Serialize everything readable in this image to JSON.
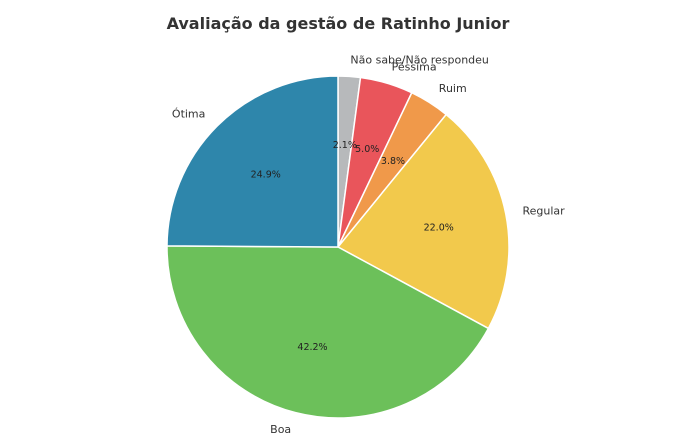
{
  "chart_data": {
    "type": "pie",
    "title": "Avaliação da gestão de Ratinho Junior",
    "start_angle_deg": 90,
    "direction": "clockwise",
    "slices": [
      {
        "label": "Não sabe/Não respondeu",
        "value": 2.1,
        "pct_label": "2.1%",
        "color": "#b7b9bb"
      },
      {
        "label": "Péssima",
        "value": 5.0,
        "pct_label": "5.0%",
        "color": "#e9555b"
      },
      {
        "label": "Ruim",
        "value": 3.8,
        "pct_label": "3.8%",
        "color": "#f0994a"
      },
      {
        "label": "Regular",
        "value": 22.0,
        "pct_label": "22.0%",
        "color": "#f2c94c"
      },
      {
        "label": "Boa",
        "value": 42.2,
        "pct_label": "42.2%",
        "color": "#6cc05a"
      },
      {
        "label": "Ótima",
        "value": 24.9,
        "pct_label": "24.9%",
        "color": "#2e86ab"
      }
    ]
  }
}
